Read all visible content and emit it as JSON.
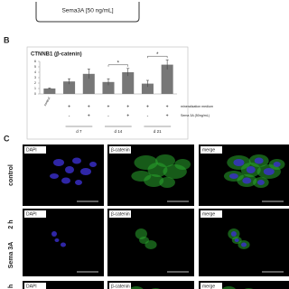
{
  "top_label": "Sema3A [50 ng/mL]",
  "panel_b": {
    "label": "B"
  },
  "chart_data": {
    "type": "bar",
    "title": "CTNNB1 (β-catenin)",
    "categories": [
      "control",
      null,
      null,
      null,
      null,
      null,
      null
    ],
    "values": [
      1.0,
      2.3,
      3.7,
      2.2,
      4.0,
      1.9,
      5.4
    ],
    "errors": [
      0.1,
      0.5,
      0.9,
      0.6,
      0.7,
      0.6,
      0.9
    ],
    "color": "#777777",
    "ylim": [
      0,
      6
    ],
    "yticks": [
      0,
      1,
      2,
      3,
      4,
      5,
      6
    ],
    "condition_rows": [
      {
        "name": "mineralization medium",
        "marks": [
          null,
          "+",
          "+",
          "+",
          "+",
          "+",
          "+"
        ]
      },
      {
        "name": "Sema 3A (50ng/mL)",
        "marks": [
          null,
          "-",
          "+",
          "-",
          "+",
          "-",
          "+"
        ]
      }
    ],
    "groups": [
      "d 7",
      "d 14",
      "d 21"
    ],
    "annotations": [
      "*",
      "*"
    ]
  },
  "panel_c": {
    "label": "C",
    "columns": [
      "DAPI",
      "β-catenin",
      "merge"
    ],
    "rows": [
      [
        "control"
      ],
      [
        "Sema 3A",
        "2 h"
      ],
      [
        "h"
      ]
    ]
  }
}
